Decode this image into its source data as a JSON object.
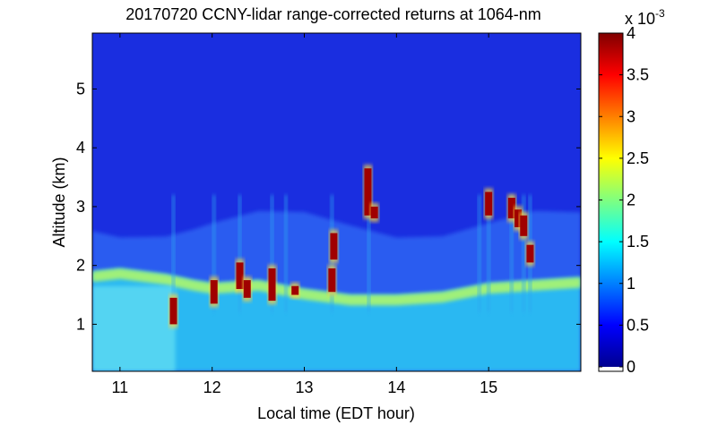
{
  "chart_data": {
    "type": "heatmap",
    "title": "20170720 CCNY-lidar range-corrected returns at 1064-nm",
    "xlabel": "Local time (EDT hour)",
    "ylabel": "Altitude (km)",
    "xlim": [
      10.7,
      16.0
    ],
    "ylim": [
      0.2,
      5.95
    ],
    "x_ticks": [
      11,
      12,
      13,
      14,
      15
    ],
    "x_tick_labels": [
      "11",
      "12",
      "13",
      "14",
      "15"
    ],
    "y_ticks": [
      1,
      2,
      3,
      4,
      5
    ],
    "y_tick_labels": [
      "1",
      "2",
      "3",
      "4",
      "5"
    ],
    "colorbar": {
      "colormap": "jet",
      "range": [
        0,
        0.004
      ],
      "ticks": [
        0,
        0.0005,
        0.001,
        0.0015,
        0.002,
        0.0025,
        0.003,
        0.0035,
        0.004
      ],
      "tick_labels": [
        "0",
        "0.5",
        "1",
        "1.5",
        "2",
        "2.5",
        "3",
        "3.5",
        "4"
      ],
      "exponent_label": "x 10",
      "exponent": "-3"
    },
    "features": {
      "boundary_layer_top_km": [
        [
          10.7,
          1.9
        ],
        [
          11.0,
          1.95
        ],
        [
          11.5,
          1.85
        ],
        [
          11.8,
          1.75
        ],
        [
          12.0,
          1.7
        ],
        [
          12.5,
          1.75
        ],
        [
          13.0,
          1.6
        ],
        [
          13.5,
          1.5
        ],
        [
          14.0,
          1.5
        ],
        [
          14.5,
          1.55
        ],
        [
          15.0,
          1.7
        ],
        [
          15.5,
          1.75
        ],
        [
          16.0,
          1.8
        ]
      ],
      "aerosol_layer_top_km": 2.7,
      "cloud_base_events": [
        {
          "time": 11.58,
          "alt_low": 1.0,
          "alt_high": 1.45
        },
        {
          "time": 12.02,
          "alt_low": 1.35,
          "alt_high": 1.75
        },
        {
          "time": 12.3,
          "alt_low": 1.6,
          "alt_high": 2.05
        },
        {
          "time": 12.38,
          "alt_low": 1.45,
          "alt_high": 1.75
        },
        {
          "time": 12.65,
          "alt_low": 1.4,
          "alt_high": 1.95
        },
        {
          "time": 12.9,
          "alt_low": 1.5,
          "alt_high": 1.65
        },
        {
          "time": 13.3,
          "alt_low": 1.55,
          "alt_high": 1.95
        },
        {
          "time": 13.32,
          "alt_low": 2.1,
          "alt_high": 2.55
        },
        {
          "time": 13.69,
          "alt_low": 2.85,
          "alt_high": 3.65
        },
        {
          "time": 13.76,
          "alt_low": 2.8,
          "alt_high": 3.0
        },
        {
          "time": 15.0,
          "alt_low": 2.85,
          "alt_high": 3.25
        },
        {
          "time": 15.25,
          "alt_low": 2.8,
          "alt_high": 3.15
        },
        {
          "time": 15.32,
          "alt_low": 2.65,
          "alt_high": 2.95
        },
        {
          "time": 15.38,
          "alt_low": 2.5,
          "alt_high": 2.85
        },
        {
          "time": 15.45,
          "alt_low": 2.05,
          "alt_high": 2.35
        }
      ],
      "precip_streaks": [
        11.58,
        12.02,
        12.3,
        12.65,
        12.8,
        13.3,
        13.7,
        14.9,
        15.0,
        15.25,
        15.38,
        15.45
      ]
    }
  }
}
